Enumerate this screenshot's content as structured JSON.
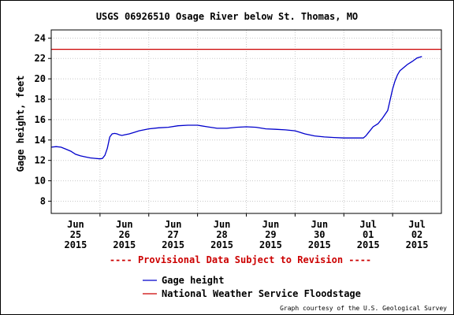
{
  "chart_data": {
    "type": "line",
    "title": "USGS 06926510 Osage River below St. Thomas, MO",
    "ylabel": "Gage height, feet",
    "xlabel": "",
    "ylim": [
      6.8,
      24.8
    ],
    "y_ticks": [
      8,
      10,
      12,
      14,
      16,
      18,
      20,
      22,
      24
    ],
    "x_ticks": [
      {
        "day": 0.5,
        "month": "Jun",
        "date": "25",
        "year": "2015"
      },
      {
        "day": 1.5,
        "month": "Jun",
        "date": "26",
        "year": "2015"
      },
      {
        "day": 2.5,
        "month": "Jun",
        "date": "27",
        "year": "2015"
      },
      {
        "day": 3.5,
        "month": "Jun",
        "date": "28",
        "year": "2015"
      },
      {
        "day": 4.5,
        "month": "Jun",
        "date": "29",
        "year": "2015"
      },
      {
        "day": 5.5,
        "month": "Jun",
        "date": "30",
        "year": "2015"
      },
      {
        "day": 6.5,
        "month": "Jul",
        "date": "01",
        "year": "2015"
      },
      {
        "day": 7.5,
        "month": "Jul",
        "date": "02",
        "year": "2015"
      }
    ],
    "xlim": [
      0,
      8
    ],
    "grid": true,
    "series": [
      {
        "name": "Gage height",
        "color": "#0000cc",
        "x": [
          0.0,
          0.1,
          0.2,
          0.3,
          0.4,
          0.5,
          0.6,
          0.7,
          0.8,
          0.9,
          1.0,
          1.05,
          1.1,
          1.15,
          1.2,
          1.25,
          1.3,
          1.35,
          1.4,
          1.45,
          1.5,
          1.6,
          1.7,
          1.8,
          2.0,
          2.2,
          2.4,
          2.6,
          2.8,
          3.0,
          3.2,
          3.4,
          3.6,
          3.8,
          4.0,
          4.2,
          4.4,
          4.6,
          4.8,
          5.0,
          5.2,
          5.4,
          5.6,
          5.8,
          6.0,
          6.2,
          6.4,
          6.45,
          6.5,
          6.6,
          6.7,
          6.8,
          6.9,
          7.0,
          7.05,
          7.1,
          7.15,
          7.2,
          7.3,
          7.4,
          7.5,
          7.6
        ],
        "values": [
          13.3,
          13.35,
          13.3,
          13.1,
          12.9,
          12.6,
          12.45,
          12.35,
          12.25,
          12.2,
          12.15,
          12.2,
          12.5,
          13.2,
          14.3,
          14.6,
          14.65,
          14.6,
          14.5,
          14.45,
          14.5,
          14.6,
          14.75,
          14.9,
          15.1,
          15.2,
          15.25,
          15.4,
          15.45,
          15.45,
          15.3,
          15.15,
          15.15,
          15.25,
          15.3,
          15.25,
          15.1,
          15.05,
          15.0,
          14.9,
          14.6,
          14.4,
          14.3,
          14.25,
          14.2,
          14.2,
          14.2,
          14.4,
          14.7,
          15.3,
          15.6,
          16.2,
          16.9,
          19.0,
          19.8,
          20.4,
          20.8,
          21.0,
          21.4,
          21.7,
          22.05,
          22.2
        ]
      },
      {
        "name": "National Weather Service Floodstage",
        "color": "#cc0000",
        "x": [
          0,
          8
        ],
        "values": [
          22.9,
          22.9
        ]
      }
    ],
    "annotation": "---- Provisional Data Subject to Revision ----",
    "credit": "Graph courtesy of the U.S. Geological Survey"
  }
}
